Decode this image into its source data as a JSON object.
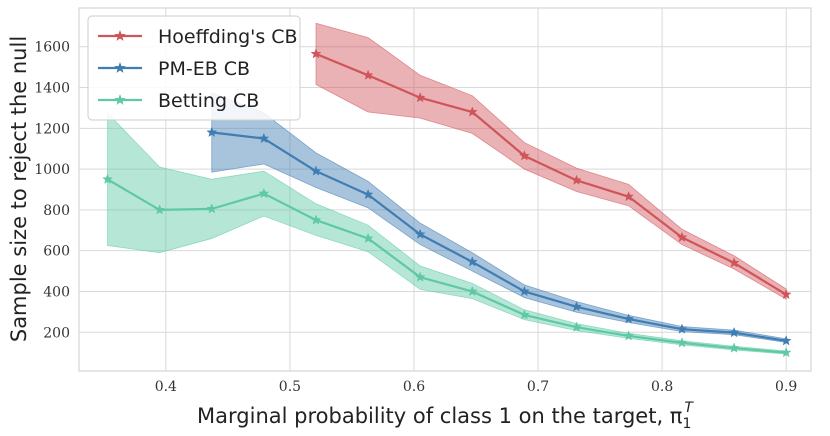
{
  "chart_data": {
    "type": "line",
    "xlabel": "Marginal probability of class 1 on the target, π",
    "xlabel_sub": "1",
    "xlabel_sup": "T",
    "ylabel": "Sample size to reject the null",
    "xlim": [
      0.33,
      0.92
    ],
    "ylim": [
      10,
      1790
    ],
    "xticks": [
      0.4,
      0.5,
      0.6,
      0.7,
      0.8,
      0.9
    ],
    "xtick_labels": [
      "0.4",
      "0.5",
      "0.6",
      "0.7",
      "0.8",
      "0.9"
    ],
    "yticks": [
      200,
      400,
      600,
      800,
      1000,
      1200,
      1400,
      1600
    ],
    "ytick_labels": [
      "200",
      "400",
      "600",
      "800",
      "1000",
      "1200",
      "1400",
      "1600"
    ],
    "grid": true,
    "legend_position": "top-left",
    "series": [
      {
        "name": "Hoeffding's CB",
        "color": "#d0555a",
        "x": [
          0.521,
          0.563,
          0.605,
          0.647,
          0.689,
          0.731,
          0.773,
          0.816,
          0.858,
          0.9
        ],
        "values": [
          1565,
          1460,
          1350,
          1280,
          1065,
          945,
          865,
          665,
          540,
          385
        ],
        "lower": [
          1415,
          1280,
          1250,
          1175,
          1000,
          890,
          820,
          630,
          510,
          362
        ],
        "upper": [
          1715,
          1645,
          1460,
          1360,
          1130,
          1005,
          925,
          705,
          575,
          412
        ]
      },
      {
        "name": "PM-EB CB",
        "color": "#3f7db3",
        "x": [
          0.437,
          0.479,
          0.521,
          0.563,
          0.605,
          0.647,
          0.689,
          0.731,
          0.773,
          0.816,
          0.858,
          0.9
        ],
        "values": [
          1180,
          1150,
          990,
          875,
          680,
          545,
          400,
          325,
          265,
          215,
          198,
          158
        ],
        "lower": [
          985,
          1025,
          910,
          810,
          630,
          500,
          370,
          298,
          248,
          203,
          188,
          150
        ],
        "upper": [
          1375,
          1275,
          1080,
          940,
          735,
          590,
          432,
          350,
          283,
          228,
          210,
          168
        ]
      },
      {
        "name": "Betting CB",
        "color": "#5ec9a3",
        "x": [
          0.353,
          0.395,
          0.437,
          0.479,
          0.521,
          0.563,
          0.605,
          0.647,
          0.689,
          0.731,
          0.773,
          0.816,
          0.858,
          0.9
        ],
        "values": [
          950,
          800,
          805,
          880,
          750,
          660,
          470,
          400,
          285,
          225,
          182,
          148,
          122,
          100
        ],
        "lower": [
          625,
          590,
          660,
          770,
          675,
          595,
          410,
          365,
          262,
          208,
          170,
          138,
          113,
          93
        ],
        "upper": [
          1275,
          1010,
          950,
          990,
          830,
          725,
          525,
          440,
          310,
          242,
          195,
          158,
          131,
          108
        ]
      }
    ]
  }
}
